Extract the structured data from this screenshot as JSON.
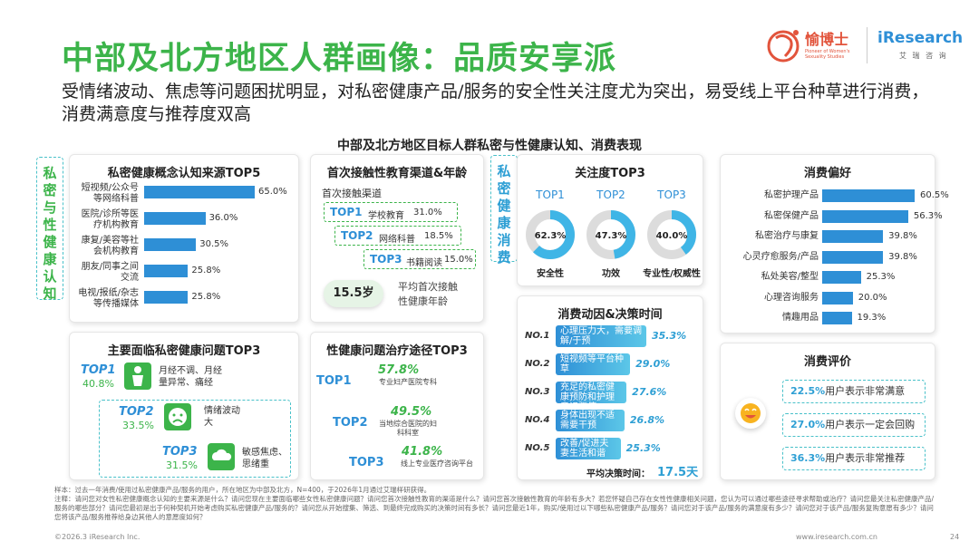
{
  "header": {
    "title": "中部及北方地区人群画像：品质安享派",
    "subtitle": "受情绪波动、焦虑等问题困扰明显，对私密健康产品/服务的安全性关注度尤为突出，易受线上平台种草进行消费，消费满意度与推荐度双高",
    "logo_brand": "愉博士",
    "logo_brand_en": "Pioneer of Women's Sexuality Studies",
    "logo_research": "iResearch",
    "logo_research_cn": "艾 瑞 咨 询"
  },
  "chart_title": "中部及北方地区目标人群私密与性健康认知、消费表现",
  "side_labels": {
    "left": "私密与性健康认知",
    "middle": "私密健康消费"
  },
  "awareness": {
    "title": "私密健康概念认知来源TOP5",
    "items": [
      {
        "label": "短视频/公众号等网络科普",
        "value": 65.0,
        "display": "65.0%"
      },
      {
        "label": "医院/诊所等医疗机构教育",
        "value": 36.0,
        "display": "36.0%"
      },
      {
        "label": "康复/美容等社会机构教育",
        "value": 30.5,
        "display": "30.5%"
      },
      {
        "label": "朋友/同事之间交流",
        "value": 25.8,
        "display": "25.8%"
      },
      {
        "label": "电视/报纸/杂志等传播媒体",
        "value": 25.8,
        "display": "25.8%"
      }
    ]
  },
  "education": {
    "title": "首次接触性教育渠道&年龄",
    "channel_label": "首次接触渠道",
    "items": [
      {
        "rank": "TOP1",
        "label": "学校教育",
        "display": "31.0%"
      },
      {
        "rank": "TOP2",
        "label": "网络科普",
        "display": "18.5%"
      },
      {
        "rank": "TOP3",
        "label": "书籍阅读",
        "display": "15.0%"
      }
    ],
    "age": "15.5岁",
    "age_label": "平均首次接触性健康年龄"
  },
  "attention": {
    "title": "关注度TOP3",
    "items": [
      {
        "rank": "TOP1",
        "value": 62.3,
        "display": "62.3%",
        "label": "安全性"
      },
      {
        "rank": "TOP2",
        "value": 47.3,
        "display": "47.3%",
        "label": "功效"
      },
      {
        "rank": "TOP3",
        "value": 40.0,
        "display": "40.0%",
        "label": "专业性/权威性"
      }
    ]
  },
  "preference": {
    "title": "消费偏好",
    "items": [
      {
        "label": "私密护理产品",
        "value": 60.5,
        "display": "60.5%"
      },
      {
        "label": "私密保健产品",
        "value": 56.3,
        "display": "56.3%"
      },
      {
        "label": "私密治疗与康复",
        "value": 39.8,
        "display": "39.8%"
      },
      {
        "label": "心灵疗愈服务/产品",
        "value": 39.8,
        "display": "39.8%"
      },
      {
        "label": "私处美容/整型",
        "value": 25.3,
        "display": "25.3%"
      },
      {
        "label": "心理咨询服务",
        "value": 20.0,
        "display": "20.0%"
      },
      {
        "label": "情趣用品",
        "value": 19.3,
        "display": "19.3%"
      }
    ]
  },
  "problems": {
    "title": "主要面临私密健康问题TOP3",
    "items": [
      {
        "rank": "TOP1",
        "display": "40.8%",
        "label": "月经不调、月经量异常、痛经"
      },
      {
        "rank": "TOP2",
        "display": "33.5%",
        "label": "情绪波动大"
      },
      {
        "rank": "TOP3",
        "display": "31.5%",
        "label": "敏感焦虑、思绪重"
      }
    ]
  },
  "treatment": {
    "title": "性健康问题治疗途径TOP3",
    "items": [
      {
        "rank": "TOP1",
        "display": "57.8%",
        "label": "专业妇产医院专科"
      },
      {
        "rank": "TOP2",
        "display": "49.5%",
        "label": "当地综合医院的妇科科室"
      },
      {
        "rank": "TOP3",
        "display": "41.8%",
        "label": "线上专业医疗咨询平台"
      }
    ]
  },
  "motivation": {
    "title": "消费动因&决策时间",
    "items": [
      {
        "no": "NO.1",
        "label": "心理压力大，需要调解/于预",
        "value": 35.3,
        "display": "35.3%"
      },
      {
        "no": "NO.2",
        "label": "短视频等平台种草",
        "value": 29.0,
        "display": "29.0%"
      },
      {
        "no": "NO.3",
        "label": "充足的私密健康预防和护理意识驱使",
        "value": 27.6,
        "display": "27.6%"
      },
      {
        "no": "NO.4",
        "label": "身体出现不适需要干预",
        "value": 26.8,
        "display": "26.8%"
      },
      {
        "no": "NO.5",
        "label": "改善/促进夫妻生活和谐",
        "value": 25.3,
        "display": "25.3%"
      }
    ],
    "decision_label": "平均决策时间：",
    "decision_value": "17.5天"
  },
  "evaluation": {
    "title": "消费评价",
    "items": [
      {
        "pct": "22.5%",
        "text": "用户表示非常满意"
      },
      {
        "pct": "27.0%",
        "text": "用户表示一定会回购"
      },
      {
        "pct": "36.3%",
        "text": "用户表示非常推荐"
      }
    ]
  },
  "notes": {
    "sample": "样本：过去一年消费/使用过私密健康产品/服务的用户，所在地区为中部及北方，N=400，于2026年1月通过艾瑞样研获得。",
    "remark": "注释：请问您对女性私密健康概念认知的主要来源是什么？请问您现在主要面临哪些女性私密健康问题？请问您首次接触性教育的渠道是什么？请问您首次接触性教育的年龄有多大？若您怀疑自己存在女性性健康相关问题，您认为可以通过哪些途径寻求帮助或治疗？请问您最关注私密健康产品/服务的哪些部分？请问您最初是出于何种契机开始考虑购买私密健康产品/服务的？请问您从开始搜集、筛选、到最终完成购买的决策时间有多长？请问您最近1年，购买/使用过以下哪些私密健康产品/服务？请问您对于该产品/服务的满意度有多少？请问您对于该产品/服务复购意愿有多少？请问您将该产品/服务推荐给身边其他人的意愿度如何？"
  },
  "footer": {
    "copyright": "©2026.3 iResearch Inc.",
    "website": "www.iresearch.com.cn",
    "page": "24"
  }
}
